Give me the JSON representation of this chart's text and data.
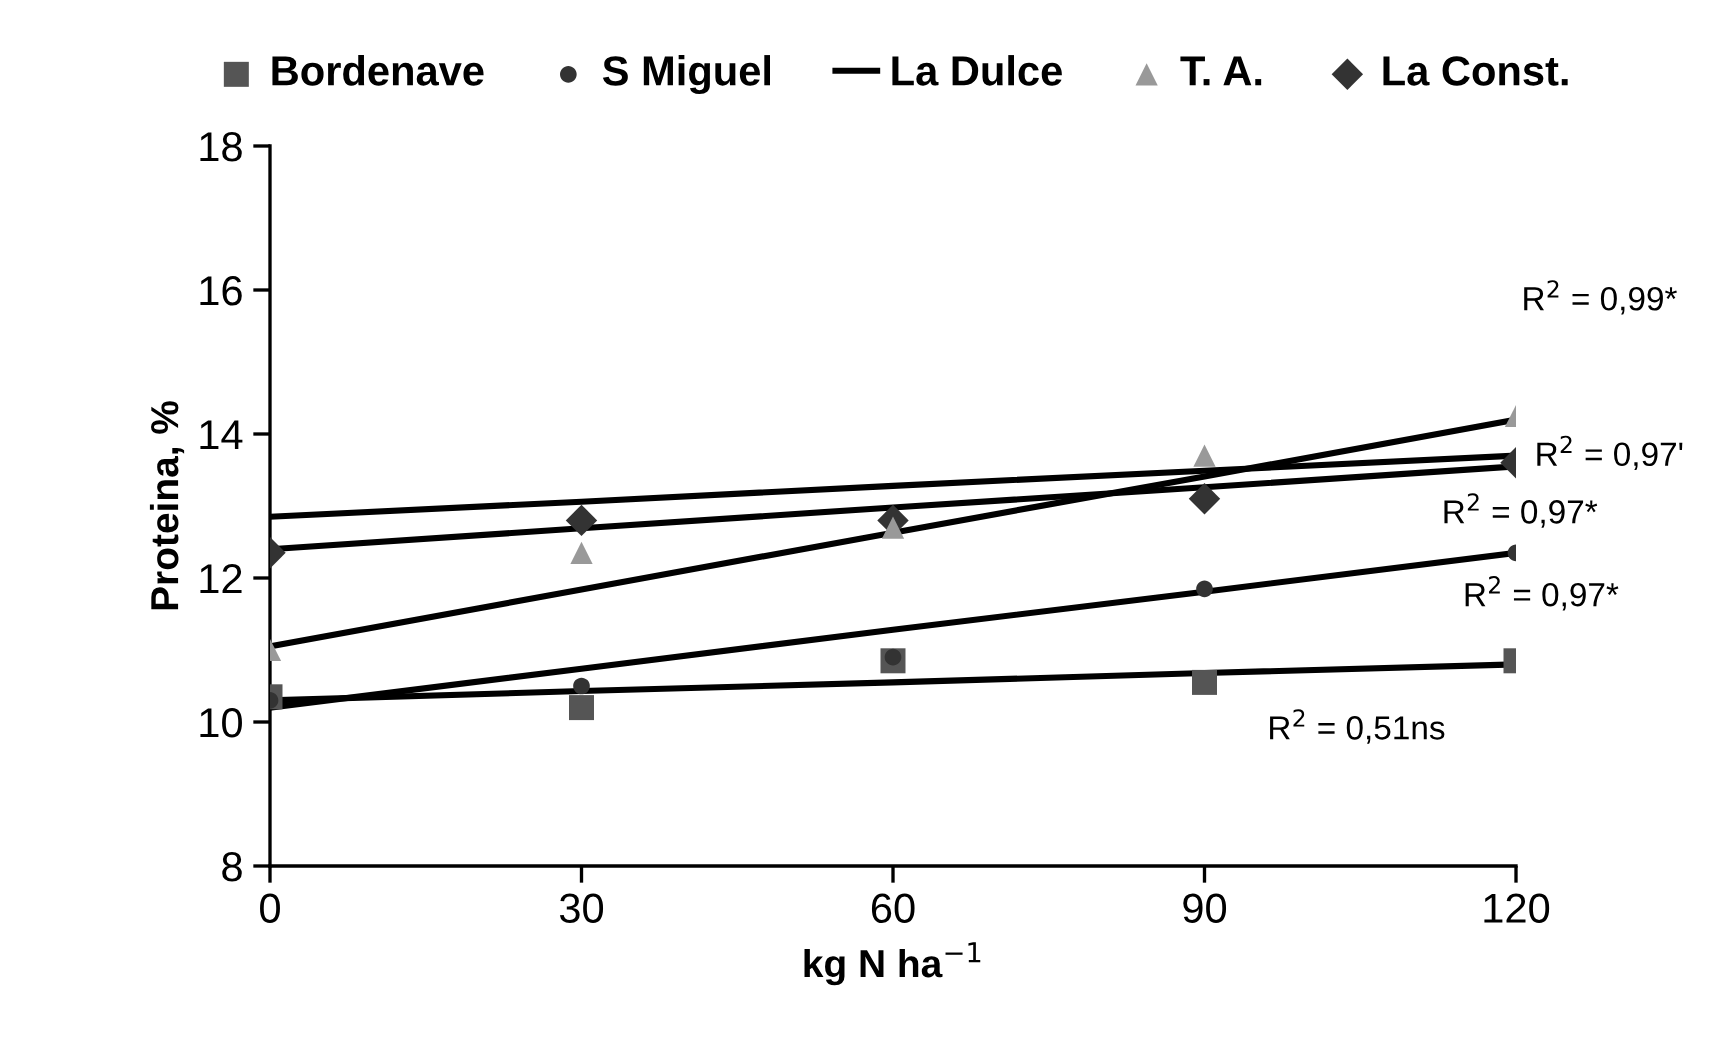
{
  "chart_data": {
    "type": "scatter",
    "xlabel": "kg N ha$^{−1}$",
    "ylabel": "Proteina, %",
    "x": [
      0,
      30,
      60,
      90,
      120
    ],
    "xlim": [
      0,
      120
    ],
    "xticks": [
      0,
      30,
      60,
      90,
      120
    ],
    "ylim": [
      8,
      18
    ],
    "yticks": [
      8,
      10,
      12,
      14,
      16,
      18
    ],
    "grid": false,
    "legend": "top",
    "series": [
      {
        "name": "Bordenave",
        "marker": "square",
        "color": "#555555",
        "values": [
          10.35,
          10.2,
          10.85,
          10.55,
          10.85
        ]
      },
      {
        "name": "S Miguel",
        "marker": "circle",
        "color": "#333333",
        "values": [
          10.3,
          10.5,
          10.9,
          11.85,
          12.35
        ]
      },
      {
        "name": "La Dulce",
        "type": "line",
        "marker": "none",
        "color": "#000000",
        "values": [
          12.85,
          13.06,
          13.28,
          13.49,
          13.7
        ]
      },
      {
        "name": "T. A.",
        "marker": "triangle",
        "color": "#999999",
        "values": [
          11.0,
          12.35,
          12.7,
          13.7,
          14.25
        ]
      },
      {
        "name": "La Const.",
        "marker": "diamond",
        "color": "#333333",
        "values": [
          12.35,
          12.8,
          12.8,
          13.1,
          13.6
        ]
      },
      {
        "type": "line",
        "marker": "none",
        "color": "#000000",
        "values": [
          10.3,
          10.43,
          10.55,
          10.68,
          10.8
        ]
      },
      {
        "type": "line",
        "marker": "none",
        "color": "#000000",
        "values": [
          10.2,
          10.74,
          11.28,
          11.81,
          12.35
        ]
      },
      {
        "type": "line",
        "marker": "none",
        "color": "#000000",
        "values": [
          11.05,
          11.84,
          12.63,
          13.41,
          14.2
        ]
      },
      {
        "type": "line",
        "marker": "none",
        "color": "#000000",
        "values": [
          12.4,
          12.69,
          12.98,
          13.26,
          13.55
        ]
      }
    ],
    "annotations": [
      "R$^{2}$ = 0,99*",
      "R$^{2}$ = 0,97'",
      "R$^{2}$ = 0,97*",
      "R$^{2}$ = 0,97*",
      "R$^{2}$ = 0,51ns"
    ]
  }
}
